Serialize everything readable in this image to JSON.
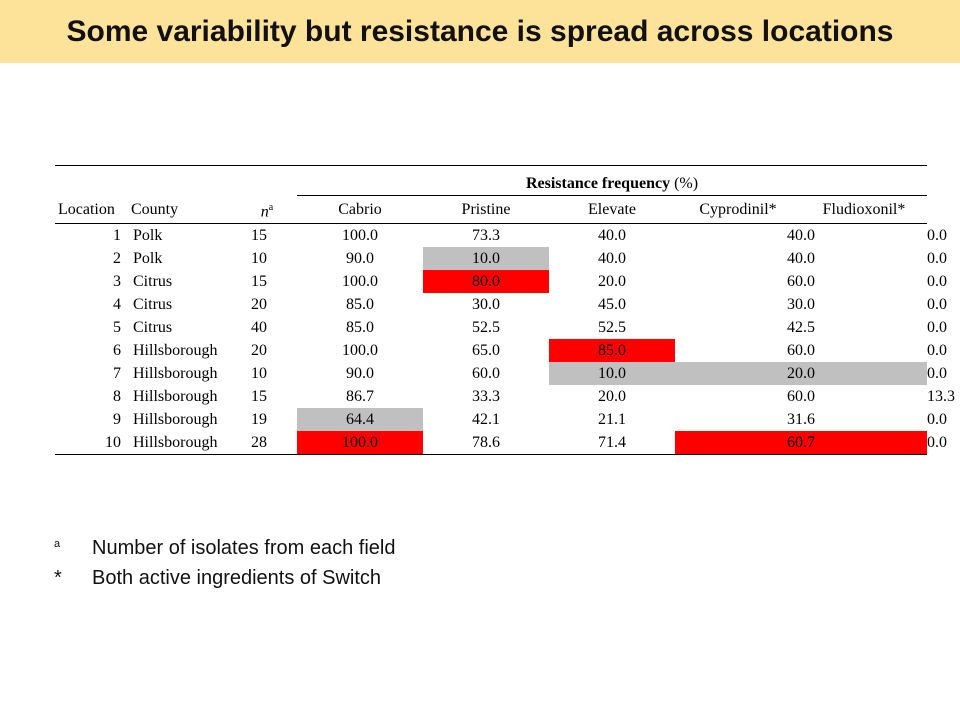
{
  "title": "Some variability but resistance is spread across locations",
  "table": {
    "group_header": "Resistance frequency",
    "group_header_unit": "(%)",
    "columns": [
      "Location",
      "County",
      "n",
      "a",
      "Cabrio",
      "Pristine",
      "Elevate",
      "Cyprodinil*",
      "Fludioxonil*"
    ],
    "rows": [
      {
        "location": "1",
        "county": "Polk",
        "n": "15",
        "values": [
          "100.0",
          "73.3",
          "40.0",
          "40.0",
          "0.0"
        ],
        "highlight": [
          "",
          "",
          "",
          "",
          "gray"
        ]
      },
      {
        "location": "2",
        "county": "Polk",
        "n": "10",
        "values": [
          "90.0",
          "10.0",
          "40.0",
          "40.0",
          "0.0"
        ],
        "highlight": [
          "",
          "gray",
          "",
          "",
          "gray"
        ]
      },
      {
        "location": "3",
        "county": "Citrus",
        "n": "15",
        "values": [
          "100.0",
          "80.0",
          "20.0",
          "60.0",
          "0.0"
        ],
        "highlight": [
          "",
          "red",
          "",
          "",
          "gray"
        ]
      },
      {
        "location": "4",
        "county": "Citrus",
        "n": "20",
        "values": [
          "85.0",
          "30.0",
          "45.0",
          "30.0",
          "0.0"
        ],
        "highlight": [
          "",
          "",
          "",
          "",
          "gray"
        ]
      },
      {
        "location": "5",
        "county": "Citrus",
        "n": "40",
        "values": [
          "85.0",
          "52.5",
          "52.5",
          "42.5",
          "0.0"
        ],
        "highlight": [
          "",
          "",
          "",
          "",
          "gray"
        ]
      },
      {
        "location": "6",
        "county": "Hillsborough",
        "n": "20",
        "values": [
          "100.0",
          "65.0",
          "85.0",
          "60.0",
          "0.0"
        ],
        "highlight": [
          "",
          "",
          "red",
          "",
          "gray"
        ]
      },
      {
        "location": "7",
        "county": "Hillsborough",
        "n": "10",
        "values": [
          "90.0",
          "60.0",
          "10.0",
          "20.0",
          "0.0"
        ],
        "highlight": [
          "",
          "",
          "gray",
          "gray",
          "gray"
        ]
      },
      {
        "location": "8",
        "county": "Hillsborough",
        "n": "15",
        "values": [
          "86.7",
          "33.3",
          "20.0",
          "60.0",
          "13.3"
        ],
        "highlight": [
          "",
          "",
          "",
          "",
          "red"
        ]
      },
      {
        "location": "9",
        "county": "Hillsborough",
        "n": "19",
        "values": [
          "64.4",
          "42.1",
          "21.1",
          "31.6",
          "0.0"
        ],
        "highlight": [
          "gray",
          "",
          "",
          "",
          "gray"
        ]
      },
      {
        "location": "10",
        "county": "Hillsborough",
        "n": "28",
        "values": [
          "100.0",
          "78.6",
          "71.4",
          "60.7",
          "0.0"
        ],
        "highlight": [
          "red",
          "",
          "",
          "red",
          "gray"
        ]
      }
    ]
  },
  "footnotes": [
    {
      "mark": "a",
      "text": "Number of isolates from each field"
    },
    {
      "mark": "*",
      "text": "Both active ingredients of Switch"
    }
  ],
  "colors": {
    "title_background": "#fde29a",
    "gray_highlight": "#c0c0c0",
    "red_highlight": "#ff0000"
  }
}
